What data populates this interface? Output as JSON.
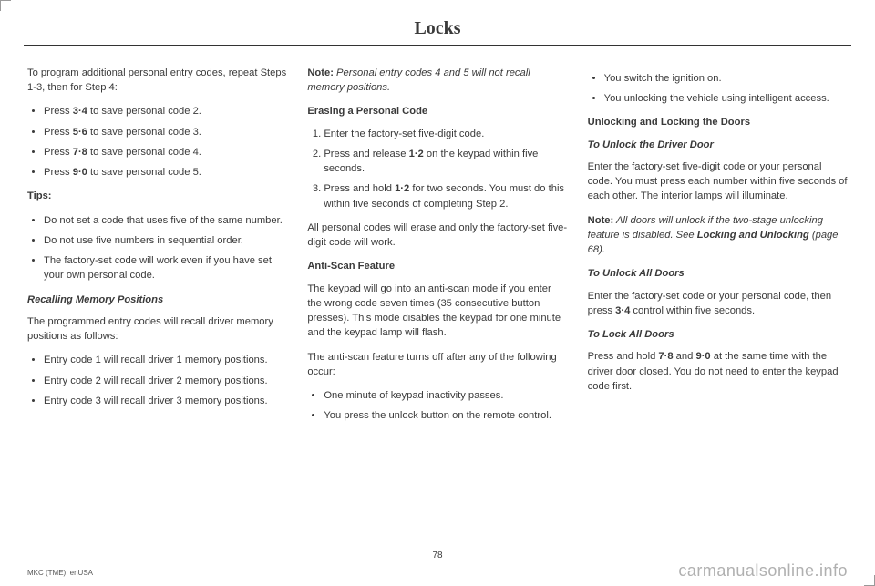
{
  "title": "Locks",
  "pageNumber": "78",
  "footerLeft": "MKC (TME), enUSA",
  "footerRight": "carmanualsonline.info",
  "col1": {
    "intro": "To program additional personal entry codes, repeat Steps 1-3, then for Step 4:",
    "pressList": [
      {
        "pre": "Press ",
        "bold": "3·4",
        "post": " to save personal code 2."
      },
      {
        "pre": "Press ",
        "bold": "5·6",
        "post": " to save personal code 3."
      },
      {
        "pre": "Press ",
        "bold": "7·8",
        "post": " to save personal code 4."
      },
      {
        "pre": "Press ",
        "bold": "9·0",
        "post": " to save personal code 5."
      }
    ],
    "tipsLabel": "Tips:",
    "tips": [
      "Do not set a code that uses five of the same number.",
      "Do not use five numbers in sequential order.",
      "The factory-set code will work even if you have set your own personal code."
    ],
    "recallHeading": "Recalling Memory Positions",
    "recallIntro": "The programmed entry codes will recall driver memory positions as follows:",
    "recallList": [
      "Entry code 1 will recall driver 1 memory positions.",
      "Entry code 2 will recall driver 2 memory positions.",
      "Entry code 3 will recall driver 3 memory positions."
    ]
  },
  "col2": {
    "noteLabel": "Note:",
    "noteText": " Personal entry codes 4 and 5 will not recall memory positions.",
    "eraseHeading": "Erasing a Personal Code",
    "eraseSteps": [
      {
        "text": "Enter the factory-set five-digit code."
      },
      {
        "pre": "Press and release ",
        "bold": "1·2",
        "post": " on the keypad within five seconds."
      },
      {
        "pre": "Press and hold ",
        "bold": "1·2",
        "post": " for two seconds. You must do this within five seconds of completing Step 2."
      }
    ],
    "eraseOutro": "All personal codes will erase and only the factory-set five-digit code will work.",
    "antiHeading": "Anti-Scan Feature",
    "antiP1": "The keypad will go into an anti-scan mode if you enter the wrong code seven times (35 consecutive button presses). This mode disables the keypad for one minute and the keypad lamp will flash.",
    "antiP2": "The anti-scan feature turns off after any of the following occur:",
    "antiList": [
      "One minute of keypad inactivity passes.",
      "You press the unlock button on the remote control."
    ]
  },
  "col3": {
    "contList": [
      "You switch the ignition on.",
      "You unlocking the vehicle using intelligent access."
    ],
    "unlockLockHeading": "Unlocking and Locking the Doors",
    "unlockDriverHeading": "To Unlock the Driver Door",
    "unlockDriverText": "Enter the factory-set five-digit code or your personal code. You must press each number within five seconds of each other. The interior lamps will illuminate.",
    "note2Label": "Note:",
    "note2Text1": " All doors will unlock if the two-stage unlocking feature is disabled.  See ",
    "note2Bold": "Locking and Unlocking",
    "note2Text2": " (page 68).",
    "unlockAllHeading": "To Unlock All Doors",
    "unlockAllPre": "Enter the factory-set code or your personal code, then press ",
    "unlockAllBold": "3·4",
    "unlockAllPost": " control within five seconds.",
    "lockAllHeading": "To Lock All Doors",
    "lockAllPre": "Press and hold ",
    "lockAllB1": "7·8",
    "lockAllMid": " and ",
    "lockAllB2": "9·0",
    "lockAllPost": " at the same time with the driver door closed. You do not need to enter the keypad code first."
  }
}
